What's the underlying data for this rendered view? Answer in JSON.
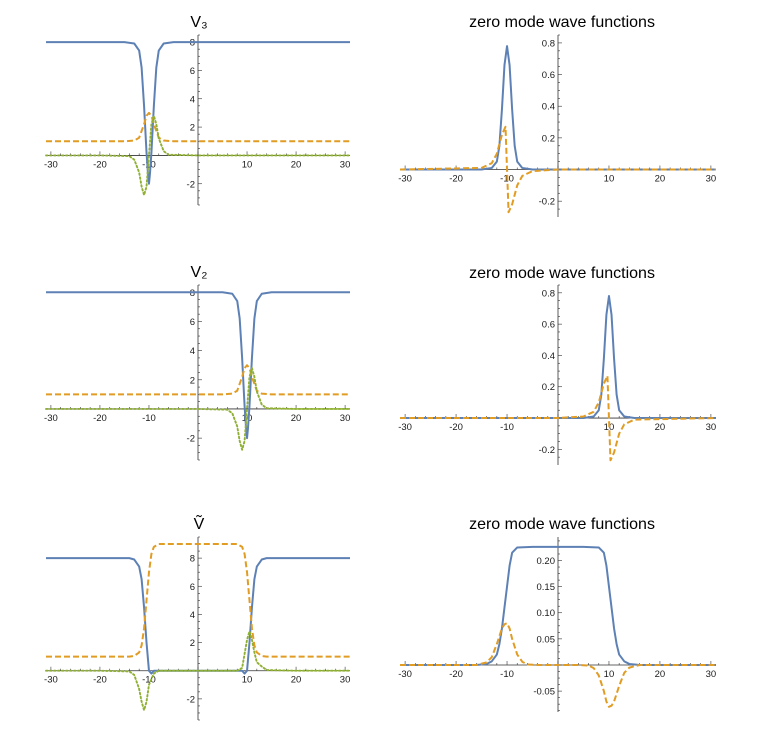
{
  "chart_data": [
    {
      "type": "line",
      "title": "V₃",
      "xlim": [
        -31,
        31
      ],
      "ylim": [
        -3.5,
        8.5
      ],
      "x_ticks": [
        "-30",
        "-20",
        "-10",
        "10",
        "20",
        "30"
      ],
      "y_ticks": [
        "-2",
        "2",
        "4",
        "6",
        "8"
      ],
      "grid": false,
      "series": [
        {
          "color": "#5e81b5",
          "style": "solid",
          "x": [
            -31,
            -20,
            -15,
            -13,
            -12,
            -11.5,
            -11,
            -10.5,
            -10.2,
            -10,
            -9.8,
            -9.5,
            -9,
            -8.5,
            -8,
            -7,
            -5,
            0,
            10,
            20,
            31
          ],
          "y": [
            8,
            8,
            8,
            7.9,
            7.4,
            6.2,
            3.5,
            0.2,
            -1.3,
            -2,
            -1.3,
            0.2,
            3.5,
            6.2,
            7.4,
            7.9,
            8,
            8,
            8,
            8,
            8
          ]
        },
        {
          "color": "#e19c24",
          "style": "dashed",
          "x": [
            -31,
            -20,
            -15,
            -13,
            -12,
            -11,
            -10.5,
            -10,
            -9.5,
            -9,
            -8,
            -7,
            -5,
            0,
            10,
            20,
            31
          ],
          "y": [
            1,
            1,
            1,
            1.05,
            1.25,
            2.2,
            2.8,
            3,
            2.8,
            2.2,
            1.25,
            1.05,
            1,
            1,
            1,
            1,
            1
          ]
        },
        {
          "color": "#8fb032",
          "style": "dotted",
          "x": [
            -31,
            -20,
            -14,
            -13,
            -12,
            -11.5,
            -11,
            -10.5,
            -10,
            -9.5,
            -9,
            -8.5,
            -8,
            -7,
            -6,
            0,
            10,
            20,
            31
          ],
          "y": [
            0,
            0,
            -0.05,
            -0.3,
            -1.2,
            -2.2,
            -2.8,
            -2.2,
            0,
            2.2,
            2.8,
            2.2,
            1.2,
            0.3,
            0.05,
            0,
            0,
            0,
            0
          ]
        }
      ]
    },
    {
      "type": "line",
      "title": "zero mode wave functions",
      "xlim": [
        -31,
        31
      ],
      "ylim": [
        -0.3,
        0.85
      ],
      "x_ticks": [
        "-30",
        "-20",
        "-10",
        "10",
        "20",
        "30"
      ],
      "y_ticks": [
        "-0.2",
        "0.2",
        "0.4",
        "0.6",
        "0.8"
      ],
      "grid": false,
      "series": [
        {
          "color": "#5e81b5",
          "style": "solid",
          "x": [
            -31,
            -15,
            -13,
            -12,
            -11.5,
            -11,
            -10.5,
            -10,
            -9.5,
            -9,
            -8.5,
            -8,
            -7,
            -5,
            0,
            31
          ],
          "y": [
            0,
            0,
            0.01,
            0.05,
            0.15,
            0.38,
            0.66,
            0.78,
            0.66,
            0.38,
            0.15,
            0.05,
            0.01,
            0,
            0,
            0
          ]
        },
        {
          "color": "#e19c24",
          "style": "dashed",
          "x": [
            -31,
            -15,
            -13,
            -12,
            -11,
            -10.3,
            -10,
            -9.7,
            -9,
            -8,
            -7,
            -5,
            0,
            31
          ],
          "y": [
            0,
            0.01,
            0.04,
            0.1,
            0.22,
            0.27,
            0,
            -0.27,
            -0.22,
            -0.1,
            -0.04,
            -0.01,
            0,
            0
          ]
        }
      ]
    },
    {
      "type": "line",
      "title": "V₂",
      "xlim": [
        -31,
        31
      ],
      "ylim": [
        -3.5,
        8.5
      ],
      "x_ticks": [
        "-30",
        "-20",
        "-10",
        "10",
        "20",
        "30"
      ],
      "y_ticks": [
        "-2",
        "2",
        "4",
        "6",
        "8"
      ],
      "grid": false,
      "series": [
        {
          "color": "#5e81b5",
          "style": "solid",
          "x": [
            -31,
            -20,
            -10,
            0,
            5,
            7,
            8,
            8.5,
            9,
            9.5,
            9.8,
            10,
            10.2,
            10.5,
            11,
            11.5,
            12,
            13,
            15,
            20,
            31
          ],
          "y": [
            8,
            8,
            8,
            8,
            8,
            7.9,
            7.4,
            6.2,
            3.5,
            0.2,
            -1.3,
            -2,
            -1.3,
            0.2,
            3.5,
            6.2,
            7.4,
            7.9,
            8,
            8,
            8
          ]
        },
        {
          "color": "#e19c24",
          "style": "dashed",
          "x": [
            -31,
            -20,
            -10,
            0,
            5,
            7,
            8,
            9,
            9.5,
            10,
            10.5,
            11,
            12,
            13,
            15,
            20,
            31
          ],
          "y": [
            1,
            1,
            1,
            1,
            1,
            1.05,
            1.25,
            2.2,
            2.8,
            3,
            2.8,
            2.2,
            1.25,
            1.05,
            1,
            1,
            1
          ]
        },
        {
          "color": "#8fb032",
          "style": "dotted",
          "x": [
            -31,
            -20,
            -10,
            0,
            6,
            7,
            8,
            8.5,
            9,
            9.5,
            10,
            10.5,
            11,
            11.5,
            12,
            13,
            14,
            20,
            31
          ],
          "y": [
            0,
            0,
            0,
            0,
            -0.05,
            -0.3,
            -1.2,
            -2.2,
            -2.8,
            -2.2,
            0,
            2.2,
            2.8,
            2.2,
            1.2,
            0.3,
            0.05,
            0,
            0
          ]
        }
      ]
    },
    {
      "type": "line",
      "title": "zero mode wave functions",
      "xlim": [
        -31,
        31
      ],
      "ylim": [
        -0.3,
        0.85
      ],
      "x_ticks": [
        "-30",
        "-20",
        "-10",
        "10",
        "20",
        "30"
      ],
      "y_ticks": [
        "-0.2",
        "0.2",
        "0.4",
        "0.6",
        "0.8"
      ],
      "grid": false,
      "series": [
        {
          "color": "#5e81b5",
          "style": "solid",
          "x": [
            -31,
            0,
            5,
            7,
            8,
            8.5,
            9,
            9.5,
            10,
            10.5,
            11,
            11.5,
            12,
            13,
            15,
            31
          ],
          "y": [
            0,
            0,
            0,
            0.01,
            0.05,
            0.15,
            0.38,
            0.66,
            0.78,
            0.66,
            0.38,
            0.15,
            0.05,
            0.01,
            0,
            0
          ]
        },
        {
          "color": "#e19c24",
          "style": "dashed",
          "x": [
            -31,
            0,
            5,
            7,
            8,
            9,
            9.7,
            10,
            10.3,
            11,
            12,
            13,
            15,
            31
          ],
          "y": [
            0,
            0,
            0.01,
            0.04,
            0.1,
            0.22,
            0.27,
            0,
            -0.27,
            -0.22,
            -0.1,
            -0.04,
            -0.01,
            0
          ]
        }
      ]
    },
    {
      "type": "line",
      "title": "Ṽ",
      "xlim": [
        -31,
        31
      ],
      "ylim": [
        -3.5,
        9.5
      ],
      "x_ticks": [
        "-30",
        "-20",
        "-10",
        "10",
        "20",
        "30"
      ],
      "y_ticks": [
        "-2",
        "2",
        "4",
        "6",
        "8"
      ],
      "grid": false,
      "series": [
        {
          "color": "#5e81b5",
          "style": "solid",
          "x": [
            -31,
            -20,
            -14,
            -13,
            -12,
            -11.5,
            -11,
            -10.5,
            -10,
            -9.5,
            -9,
            -8,
            -5,
            0,
            5,
            8,
            9,
            9.5,
            10,
            10.5,
            11,
            11.5,
            12,
            13,
            14,
            20,
            31
          ],
          "y": [
            8,
            8,
            8,
            7.9,
            7.4,
            6.5,
            4.5,
            2,
            0,
            -0.2,
            0,
            0,
            0,
            0,
            0,
            0,
            0,
            -0.2,
            0,
            2,
            4.5,
            6.5,
            7.4,
            7.9,
            8,
            8,
            8
          ]
        },
        {
          "color": "#e19c24",
          "style": "dashed",
          "x": [
            -31,
            -20,
            -14,
            -13,
            -12,
            -11.5,
            -11,
            -10.5,
            -10,
            -9.5,
            -9,
            -8,
            -5,
            0,
            5,
            8,
            9,
            9.5,
            10,
            10.5,
            11,
            11.5,
            12,
            13,
            14,
            20,
            31
          ],
          "y": [
            1,
            1,
            1,
            1.05,
            1.3,
            1.8,
            3,
            5,
            7,
            8.3,
            8.8,
            9,
            9,
            9,
            9,
            9,
            8.8,
            8.3,
            7,
            5,
            3,
            1.8,
            1.3,
            1.05,
            1,
            1,
            1
          ]
        },
        {
          "color": "#8fb032",
          "style": "dotted",
          "x": [
            -31,
            -20,
            -14,
            -13,
            -12,
            -11.5,
            -11,
            -10.5,
            -10,
            -9,
            -8,
            -5,
            0,
            5,
            8,
            9,
            9.5,
            10,
            10.5,
            11,
            11.5,
            12,
            13,
            14,
            20,
            31
          ],
          "y": [
            0,
            0,
            -0.05,
            -0.3,
            -1.3,
            -2.2,
            -2.8,
            -2.2,
            -1,
            -0.2,
            0,
            0,
            0,
            0,
            0,
            0.2,
            1.2,
            2.2,
            2.8,
            2.2,
            1.3,
            0.6,
            0.3,
            0.05,
            0,
            0
          ]
        }
      ]
    },
    {
      "type": "line",
      "title": "zero mode wave functions",
      "xlim": [
        -31,
        31
      ],
      "ylim": [
        -0.09,
        0.245
      ],
      "x_ticks": [
        "-30",
        "-20",
        "-10",
        "10",
        "20",
        "30"
      ],
      "y_ticks": [
        "-0.05",
        "0.05",
        "0.10",
        "0.15",
        "0.20"
      ],
      "grid": false,
      "series": [
        {
          "color": "#5e81b5",
          "style": "solid",
          "x": [
            -31,
            -16,
            -14,
            -13,
            -12,
            -11.5,
            -11,
            -10.5,
            -10,
            -9.5,
            -9,
            -8,
            -5,
            0,
            5,
            8,
            9,
            9.5,
            10,
            10.5,
            11,
            11.5,
            12,
            13,
            14,
            16,
            31
          ],
          "y": [
            0,
            0,
            0.002,
            0.007,
            0.02,
            0.04,
            0.07,
            0.11,
            0.15,
            0.19,
            0.215,
            0.225,
            0.226,
            0.226,
            0.226,
            0.225,
            0.215,
            0.19,
            0.15,
            0.11,
            0.07,
            0.04,
            0.02,
            0.007,
            0.002,
            0,
            0
          ]
        },
        {
          "color": "#e19c24",
          "style": "dashed",
          "x": [
            -31,
            -16,
            -14,
            -13,
            -12,
            -11,
            -10.5,
            -10,
            -9.5,
            -9,
            -8,
            -7,
            -6,
            -4,
            0,
            4,
            6,
            7,
            8,
            9,
            9.5,
            10,
            10.5,
            11,
            12,
            13,
            14,
            16,
            31
          ],
          "y": [
            0,
            0,
            0.005,
            0.015,
            0.04,
            0.07,
            0.078,
            0.08,
            0.07,
            0.05,
            0.02,
            0.006,
            0.001,
            0,
            0,
            0,
            -0.001,
            -0.006,
            -0.02,
            -0.05,
            -0.07,
            -0.08,
            -0.078,
            -0.07,
            -0.04,
            -0.015,
            -0.005,
            0,
            0
          ]
        }
      ]
    }
  ]
}
